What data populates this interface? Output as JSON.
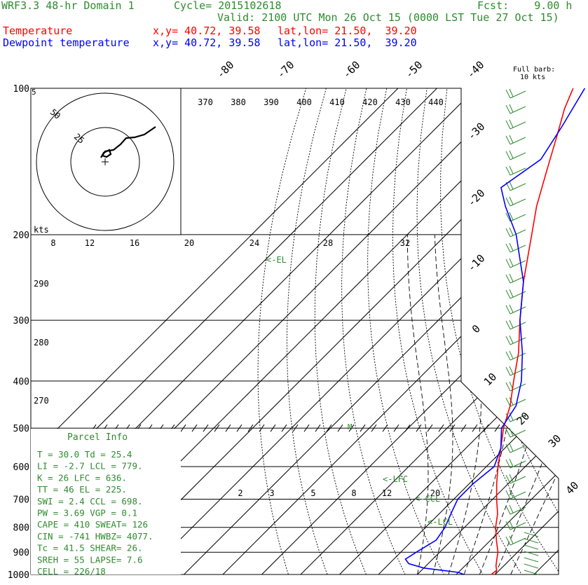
{
  "header": {
    "model": "WRF3.3 48-hr Domain 1",
    "cycle": "Cycle= 2015102618",
    "fcst": "Fcst:    9.00 h",
    "valid": "Valid: 2100 UTC Mon 26 Oct 15 (0000 LST Tue 27 Oct 15)",
    "temp_label": "Temperature",
    "temp_xy": "x,y= 40.72, 39.58",
    "temp_latlon": "lat,lon= 21.50,  39.20",
    "dew_label": "Dewpoint temperature",
    "dew_xy": "x,y= 40.72, 39.58",
    "dew_latlon": "lat,lon= 21.50,  39.20",
    "barb_note_1": "Full barb:",
    "barb_note_2": "10 kts"
  },
  "colors": {
    "temperature": "#ff0000",
    "dewpoint": "#0000ff",
    "annotation": "#2e8b2e",
    "grid": "#000000"
  },
  "chart_data": {
    "type": "line",
    "title": "",
    "pressure_levels": [
      100,
      200,
      300,
      400,
      500,
      600,
      700,
      800,
      900,
      1000
    ],
    "isotherm_labels": [
      "-80",
      "-70",
      "-60",
      "-50",
      "-40",
      "-30",
      "-20",
      "-10",
      "0",
      "10",
      "20",
      "30",
      "40"
    ],
    "theta_e_labels": [
      "370",
      "380",
      "390",
      "400",
      "410",
      "420",
      "430",
      "440"
    ],
    "theta_labels": [
      "290",
      "280",
      "270"
    ],
    "mixing_ratio_labels_top": [
      "8",
      "12",
      "16",
      "20",
      "24",
      "28",
      "32"
    ],
    "mixing_ratio_labels_bottom": [
      "2",
      "3",
      "5",
      "8",
      "12",
      "20"
    ],
    "level_markers": [
      "<-EL",
      "<-LFC",
      "<-CCL",
      "<-LCL"
    ],
    "series": [
      {
        "name": "Temperature",
        "points": [
          [
            1000,
            29
          ],
          [
            980,
            29.3
          ],
          [
            960,
            28
          ],
          [
            940,
            27
          ],
          [
            920,
            26
          ],
          [
            900,
            25
          ],
          [
            850,
            21.5
          ],
          [
            800,
            18
          ],
          [
            750,
            15
          ],
          [
            700,
            11
          ],
          [
            650,
            7
          ],
          [
            600,
            3
          ],
          [
            550,
            -1
          ],
          [
            500,
            -5.5
          ],
          [
            450,
            -9.5
          ],
          [
            400,
            -15
          ],
          [
            350,
            -21
          ],
          [
            300,
            -29
          ],
          [
            250,
            -38
          ],
          [
            200,
            -48
          ],
          [
            175,
            -54
          ],
          [
            150,
            -60
          ],
          [
            125,
            -67
          ],
          [
            110,
            -72
          ],
          [
            100,
            -75
          ]
        ]
      },
      {
        "name": "Dewpoint temperature",
        "points": [
          [
            1000,
            22
          ],
          [
            990,
            20
          ],
          [
            970,
            10
          ],
          [
            950,
            5
          ],
          [
            930,
            3
          ],
          [
            900,
            4
          ],
          [
            850,
            6
          ],
          [
            800,
            5
          ],
          [
            750,
            3
          ],
          [
            700,
            1
          ],
          [
            650,
            1
          ],
          [
            600,
            2
          ],
          [
            550,
            -1
          ],
          [
            500,
            -6
          ],
          [
            450,
            -8
          ],
          [
            400,
            -13
          ],
          [
            350,
            -20
          ],
          [
            300,
            -29
          ],
          [
            250,
            -38
          ],
          [
            200,
            -52
          ],
          [
            175,
            -62
          ],
          [
            160,
            -68
          ],
          [
            140,
            -65
          ],
          [
            120,
            -68
          ],
          [
            100,
            -72
          ]
        ]
      }
    ]
  },
  "hodograph": {
    "ring_labels": [
      "5",
      "25",
      "50"
    ],
    "units": "kts"
  },
  "parcel_info": {
    "title": "Parcel Info",
    "rows": [
      "T   =    30.0 Td =  25.4",
      "LI  =    -2.7 LCL =  779.",
      "K   =      26 LFC =  636.",
      "TT  =      46 EL  =  225.",
      "SWI =     2.4 CCL =  698.",
      "PW  =    3.69 VGP =   0.1",
      "CAPE =    410 SWEAT=  126",
      "CIN =    -741 HWBZ= 4077.",
      "Tc  =    41.5 SHEAR=  26.",
      "SREH =     55 LAPSE=  7.6",
      "CELL = 226/18"
    ]
  }
}
